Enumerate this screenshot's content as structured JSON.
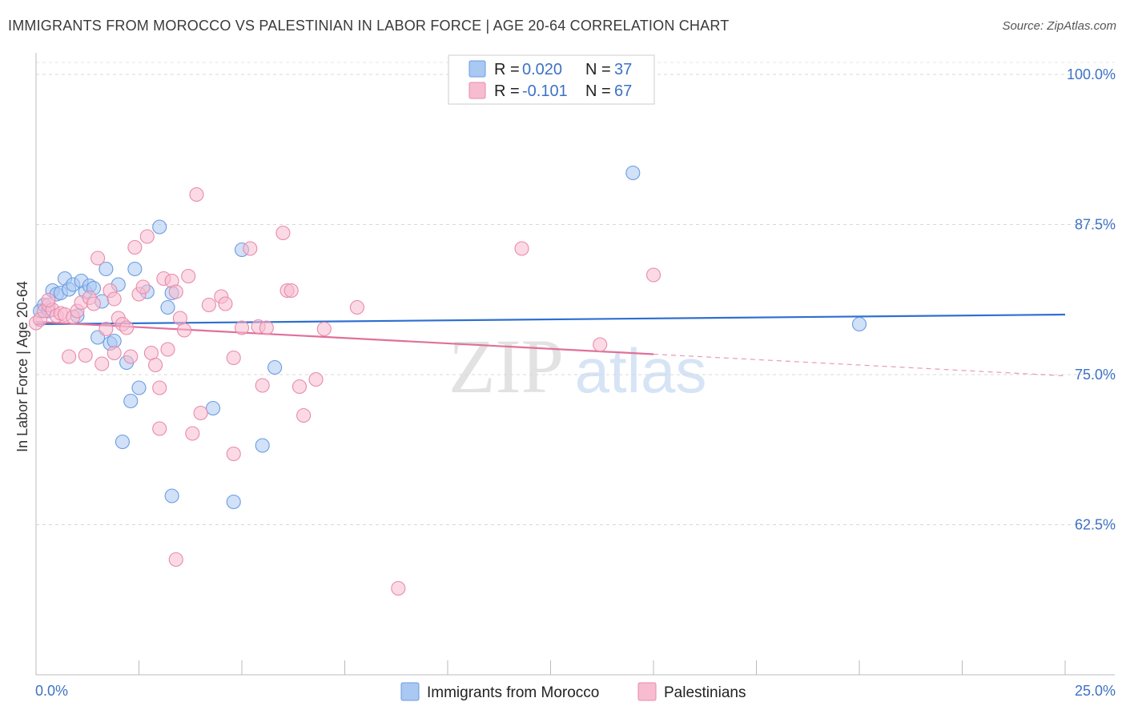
{
  "title": "IMMIGRANTS FROM MOROCCO VS PALESTINIAN IN LABOR FORCE | AGE 20-64 CORRELATION CHART",
  "source": "Source: ZipAtlas.com",
  "watermark": {
    "zip": "ZIP",
    "atlas": "atlas"
  },
  "legend": {
    "rows": [
      {
        "r_label": "R = ",
        "r_value": "0.020",
        "n_label": "N = ",
        "n_value": "37",
        "color": "#a9c8f2",
        "edge": "#6b9be0"
      },
      {
        "r_label": "R = ",
        "r_value": "-0.101",
        "n_label": "N = ",
        "n_value": "67",
        "color": "#f7bcd0",
        "edge": "#e88aaa"
      }
    ]
  },
  "bottom_legend": [
    {
      "label": "Immigrants from Morocco",
      "color": "#a9c8f2",
      "edge": "#6b9be0"
    },
    {
      "label": "Palestinians",
      "color": "#f7bcd0",
      "edge": "#e88aaa"
    }
  ],
  "chart_data": {
    "type": "scatter",
    "xlabel": "",
    "ylabel": "In Labor Force | Age 20-64",
    "xlim": [
      0,
      25
    ],
    "ylim": [
      50,
      101
    ],
    "x_tick_labels": [
      {
        "value": 0,
        "label": "0.0%"
      },
      {
        "value": 25,
        "label": "25.0%"
      }
    ],
    "y_tick_labels": [
      {
        "value": 100,
        "label": "100.0%"
      },
      {
        "value": 87.5,
        "label": "87.5%"
      },
      {
        "value": 75,
        "label": "75.0%"
      },
      {
        "value": 62.5,
        "label": "62.5%"
      }
    ],
    "x_minor_ticks": [
      2.5,
      5,
      7.5,
      10,
      12.5,
      15,
      17.5,
      20,
      22.5,
      25
    ],
    "series": [
      {
        "name": "Immigrants from Morocco",
        "color": "#a9c8f2",
        "edge": "#6b9be0",
        "trend": {
          "x": [
            0,
            25
          ],
          "y": [
            79.2,
            80.0
          ],
          "color": "#2e6fd0"
        },
        "points": [
          [
            0.1,
            80.3
          ],
          [
            0.2,
            80.8
          ],
          [
            0.3,
            80.3
          ],
          [
            0.4,
            82.0
          ],
          [
            0.5,
            81.7
          ],
          [
            0.6,
            81.8
          ],
          [
            0.7,
            83.0
          ],
          [
            0.8,
            82.1
          ],
          [
            0.9,
            82.5
          ],
          [
            1.0,
            79.9
          ],
          [
            1.1,
            82.8
          ],
          [
            1.2,
            81.9
          ],
          [
            1.3,
            82.4
          ],
          [
            1.4,
            82.2
          ],
          [
            1.5,
            78.1
          ],
          [
            1.6,
            81.1
          ],
          [
            1.7,
            83.8
          ],
          [
            1.8,
            77.6
          ],
          [
            1.9,
            77.8
          ],
          [
            2.0,
            82.5
          ],
          [
            2.1,
            69.4
          ],
          [
            2.2,
            76.0
          ],
          [
            2.3,
            72.8
          ],
          [
            2.4,
            83.8
          ],
          [
            2.5,
            73.9
          ],
          [
            2.7,
            81.9
          ],
          [
            3.0,
            87.3
          ],
          [
            3.2,
            80.6
          ],
          [
            3.3,
            81.8
          ],
          [
            3.3,
            64.9
          ],
          [
            4.3,
            72.2
          ],
          [
            4.8,
            64.4
          ],
          [
            5.0,
            85.4
          ],
          [
            5.8,
            75.6
          ],
          [
            5.5,
            69.1
          ],
          [
            14.5,
            91.8
          ],
          [
            20.0,
            79.2
          ]
        ]
      },
      {
        "name": "Palestinians",
        "color": "#f7bcd0",
        "edge": "#e88aaa",
        "trend": {
          "x": [
            0,
            15
          ],
          "y": [
            79.4,
            76.7
          ],
          "dash_x": [
            15,
            25
          ],
          "dash_y": [
            76.7,
            74.9
          ],
          "color": "#e0709a"
        },
        "points": [
          [
            0.0,
            79.3
          ],
          [
            0.1,
            79.6
          ],
          [
            0.2,
            80.3
          ],
          [
            0.3,
            80.8
          ],
          [
            0.4,
            80.4
          ],
          [
            0.5,
            79.9
          ],
          [
            0.6,
            80.1
          ],
          [
            0.7,
            80.0
          ],
          [
            0.8,
            76.5
          ],
          [
            0.9,
            79.8
          ],
          [
            1.0,
            80.3
          ],
          [
            1.1,
            81.0
          ],
          [
            1.2,
            76.6
          ],
          [
            1.3,
            81.4
          ],
          [
            1.4,
            80.9
          ],
          [
            1.5,
            84.7
          ],
          [
            1.6,
            75.9
          ],
          [
            1.7,
            78.8
          ],
          [
            1.8,
            82.0
          ],
          [
            1.9,
            81.3
          ],
          [
            1.9,
            76.8
          ],
          [
            2.0,
            79.7
          ],
          [
            2.1,
            79.2
          ],
          [
            2.2,
            78.9
          ],
          [
            2.3,
            76.5
          ],
          [
            2.4,
            85.6
          ],
          [
            2.5,
            81.7
          ],
          [
            2.6,
            82.3
          ],
          [
            2.7,
            86.5
          ],
          [
            2.8,
            76.8
          ],
          [
            2.9,
            75.8
          ],
          [
            3.0,
            73.9
          ],
          [
            3.0,
            70.5
          ],
          [
            3.1,
            83.0
          ],
          [
            3.2,
            77.1
          ],
          [
            3.3,
            82.8
          ],
          [
            3.4,
            81.9
          ],
          [
            3.5,
            79.7
          ],
          [
            3.6,
            78.7
          ],
          [
            3.7,
            83.2
          ],
          [
            3.8,
            70.1
          ],
          [
            3.9,
            90.0
          ],
          [
            4.0,
            71.8
          ],
          [
            4.2,
            80.8
          ],
          [
            4.5,
            81.5
          ],
          [
            4.6,
            80.9
          ],
          [
            4.8,
            76.4
          ],
          [
            4.8,
            68.4
          ],
          [
            5.0,
            78.9
          ],
          [
            5.2,
            85.5
          ],
          [
            5.4,
            79.0
          ],
          [
            5.5,
            74.1
          ],
          [
            5.6,
            78.9
          ],
          [
            6.0,
            86.8
          ],
          [
            6.1,
            82.0
          ],
          [
            6.2,
            82.0
          ],
          [
            6.4,
            74.0
          ],
          [
            6.5,
            71.6
          ],
          [
            6.8,
            74.6
          ],
          [
            7.0,
            78.8
          ],
          [
            7.8,
            80.6
          ],
          [
            3.4,
            59.6
          ],
          [
            8.8,
            57.2
          ],
          [
            11.8,
            85.5
          ],
          [
            13.7,
            77.5
          ],
          [
            15.0,
            83.3
          ],
          [
            0.3,
            81.2
          ]
        ]
      }
    ]
  }
}
